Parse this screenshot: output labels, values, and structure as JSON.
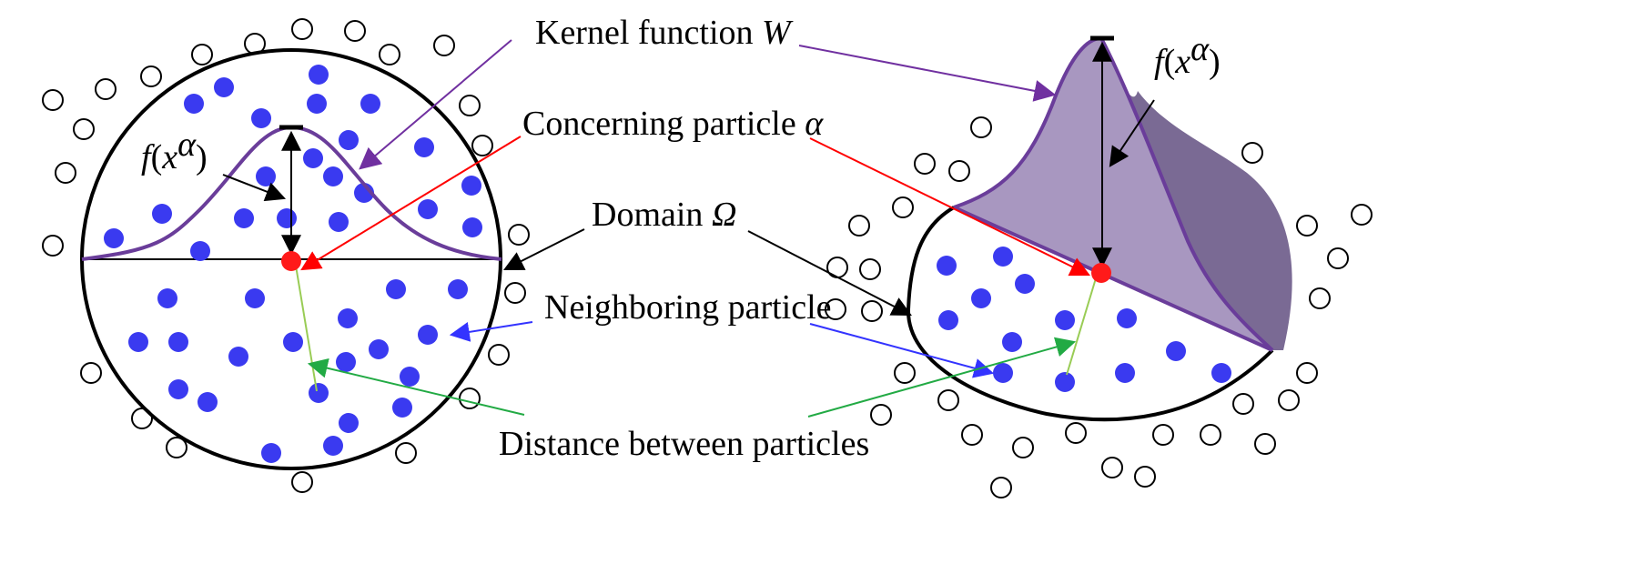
{
  "labels": {
    "kernel_prefix": "Kernel function ",
    "kernel_symbol": "W",
    "concerning_prefix": "Concerning particle ",
    "concerning_symbol": "α",
    "domain_prefix": "Domain ",
    "domain_symbol": "Ω",
    "neighboring": "Neighboring particle",
    "distance": "Distance between particles",
    "f_func": "f",
    "f_open": "(",
    "f_var": "x",
    "f_sup": "α",
    "f_close": ")"
  },
  "colors": {
    "neighbor_fill": "#3a3af0",
    "concerning_fill": "#ff1a1a",
    "outside_stroke": "#000000",
    "kernel_curve": "#6a3d9a",
    "kernel_surface_front": "#a897c0",
    "kernel_surface_side": "#7a6a94",
    "arrow_kernel": "#7030a0",
    "arrow_concerning": "#ff0000",
    "arrow_domain": "#000000",
    "arrow_neighbor": "#3333ff",
    "arrow_distance": "#22aa44",
    "distance_line": "#99cc55"
  },
  "icons": {
    "neighbor": "filled-circle",
    "outside": "hollow-circle",
    "concerning": "red-dot"
  }
}
